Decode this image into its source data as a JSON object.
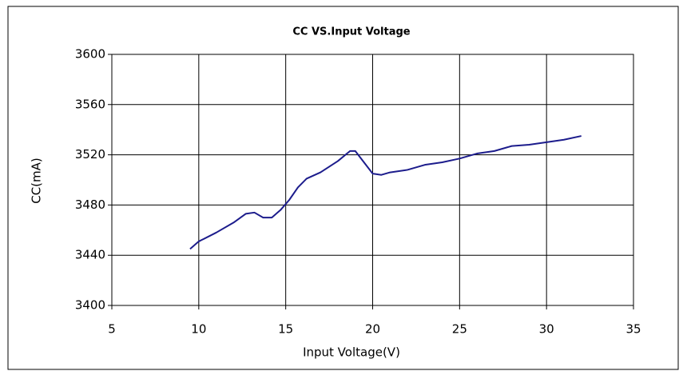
{
  "chart_data": {
    "type": "line",
    "title": "CC VS.Input Voltage",
    "x_label": "Input Voltage(V)",
    "y_label": "CC(mA)",
    "x": [
      9.5,
      10,
      11,
      12,
      12.7,
      13.2,
      13.7,
      14.2,
      14.7,
      15.2,
      15.7,
      16.2,
      17,
      18,
      18.7,
      19,
      19.5,
      20,
      20.5,
      21,
      22,
      23,
      24,
      25,
      26,
      27,
      28,
      29,
      30,
      31,
      32
    ],
    "values": [
      3445,
      3451,
      3458,
      3466,
      3473,
      3474,
      3470,
      3470,
      3476,
      3484,
      3494,
      3501,
      3506,
      3515,
      3523,
      3523,
      3514,
      3505,
      3504,
      3506,
      3508,
      3512,
      3514,
      3517,
      3521,
      3523,
      3527,
      3528,
      3530,
      3532,
      3535
    ],
    "color": "#1c1c8c",
    "xlim": [
      5,
      35
    ],
    "xticks": [
      5,
      10,
      15,
      20,
      25,
      30,
      35
    ],
    "ylim": [
      3400,
      3600
    ],
    "yticks": [
      3400,
      3440,
      3480,
      3520,
      3560,
      3600
    ],
    "grid": true
  }
}
